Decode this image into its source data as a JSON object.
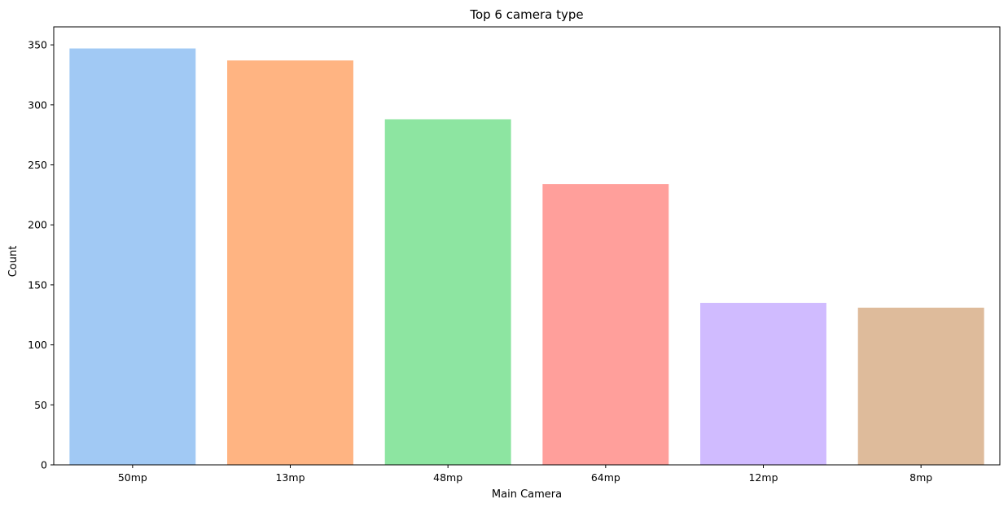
{
  "chart_data": {
    "type": "bar",
    "title": "Top 6 camera type",
    "xlabel": "Main Camera",
    "ylabel": "Count",
    "categories": [
      "50mp",
      "13mp",
      "48mp",
      "64mp",
      "12mp",
      "8mp"
    ],
    "values": [
      347,
      337,
      288,
      234,
      135,
      131
    ],
    "colors": [
      "#a1c9f4",
      "#ffb482",
      "#8de5a1",
      "#ff9f9b",
      "#d0bbff",
      "#debb9b"
    ],
    "ylim": [
      0,
      365
    ],
    "yticks": [
      0,
      50,
      100,
      150,
      200,
      250,
      300,
      350
    ],
    "grid": false,
    "legend": "none"
  }
}
